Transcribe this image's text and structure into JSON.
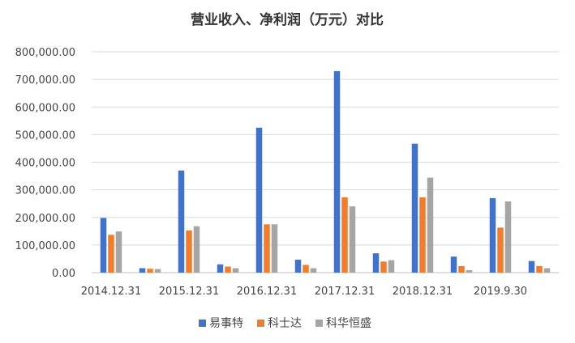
{
  "chart_data": {
    "type": "bar",
    "title": "营业收入、净利润（万元）对比",
    "xlabel": "",
    "ylabel": "",
    "ylim": [
      0,
      800000
    ],
    "ytick_values": [
      0,
      100000,
      200000,
      300000,
      400000,
      500000,
      600000,
      700000,
      800000
    ],
    "yticks": [
      "0.00",
      "100,000.00",
      "200,000.00",
      "300,000.00",
      "400,000.00",
      "500,000.00",
      "600,000.00",
      "700,000.00",
      "800,000.00"
    ],
    "categories": [
      "2014.12.31",
      "",
      "2015.12.31",
      "",
      "2016.12.31",
      "",
      "2017.12.31",
      "",
      "2018.12.31",
      "",
      "2019.9.30",
      ""
    ],
    "series": [
      {
        "name": "易事特",
        "color": "#4472C4",
        "values": [
          198000,
          16000,
          370000,
          30000,
          525000,
          47000,
          730000,
          70000,
          467000,
          58000,
          270000,
          42000
        ]
      },
      {
        "name": "科士达",
        "color": "#ED7D31",
        "values": [
          137000,
          14000,
          153000,
          22000,
          175000,
          28000,
          273000,
          40000,
          273000,
          24000,
          163000,
          24000
        ]
      },
      {
        "name": "科华恒盛",
        "color": "#A5A5A5",
        "values": [
          149000,
          13000,
          168000,
          16000,
          175000,
          16000,
          240000,
          45000,
          344000,
          9000,
          258000,
          16000
        ]
      }
    ],
    "grid": true,
    "legend": "bottom"
  }
}
